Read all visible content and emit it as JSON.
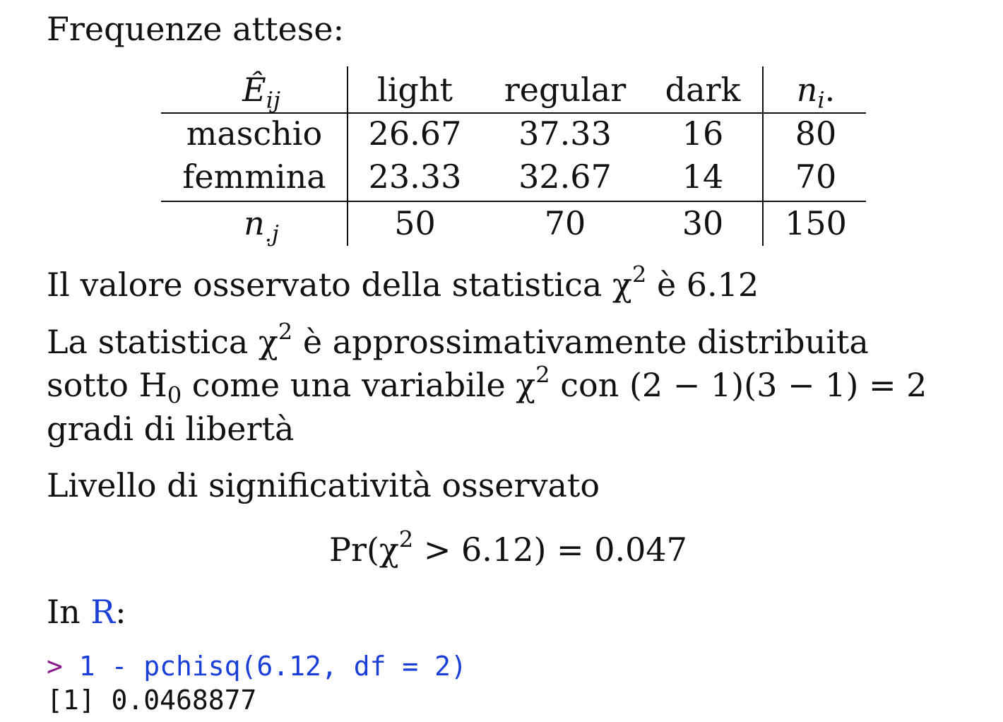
{
  "heading": "Frequenze attese:",
  "table": {
    "corner_label": "Ê",
    "corner_sub": "ij",
    "col_headers": [
      "light",
      "regular",
      "dark"
    ],
    "total_col_header": "n",
    "total_col_sub": "i",
    "total_col_dot": ".",
    "rows": [
      {
        "label": "maschio",
        "values": [
          "26.67",
          "37.33",
          "16"
        ],
        "total": "80"
      },
      {
        "label": "femmina",
        "values": [
          "23.33",
          "32.67",
          "14"
        ],
        "total": "70"
      }
    ],
    "total_row_label": "n",
    "total_row_sub": ".j",
    "col_totals": [
      "50",
      "70",
      "30"
    ],
    "grand_total": "150"
  },
  "observed": {
    "text": "Il valore osservato della statistica χ",
    "sup": "2",
    "text_after": " è 6.12"
  },
  "distribution": {
    "line1_a": "La statistica χ",
    "line1_sup": "2",
    "line1_b": " è approssimativamente distribuita",
    "line2_a": "sotto H",
    "line2_sub": "0",
    "line2_b": " come una variabile χ",
    "line2_sup": "2",
    "line2_c": " con (2 − 1)(3 − 1) = 2",
    "line3": "gradi di libertà"
  },
  "significance": {
    "label": "Livello di significatività osservato",
    "formula_a": "Pr(χ",
    "formula_sup": "2",
    "formula_b": " > 6.12) = 0.047"
  },
  "in_r": {
    "prefix": "In ",
    "link": "R",
    "suffix": ":"
  },
  "code": {
    "prompt": "> ",
    "command": "1 - pchisq(6.12, df = 2)",
    "output": "[1] 0.0468877"
  }
}
